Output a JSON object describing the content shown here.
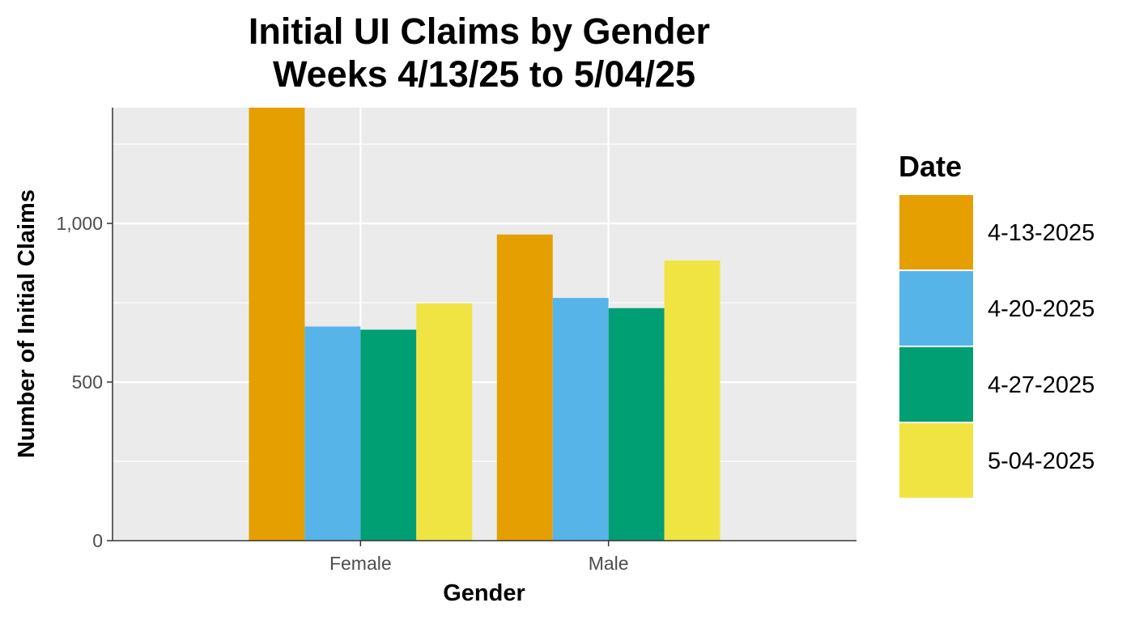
{
  "chart_data": {
    "type": "bar",
    "title_lines": [
      "Initial UI Claims by Gender",
      "Weeks 4/13/25 to 5/04/25"
    ],
    "xlabel": "Gender",
    "ylabel": "Number of Initial Claims",
    "categories": [
      "Female",
      "Male"
    ],
    "series": [
      {
        "name": "4-13-2025",
        "color": "#E69F00",
        "values": [
          1365,
          965
        ]
      },
      {
        "name": "4-20-2025",
        "color": "#56B4E9",
        "values": [
          675,
          765
        ]
      },
      {
        "name": "4-27-2025",
        "color": "#009E73",
        "values": [
          665,
          733
        ]
      },
      {
        "name": "5-04-2025",
        "color": "#F0E442",
        "values": [
          748,
          883
        ]
      }
    ],
    "ylim": [
      0,
      1365
    ],
    "yticks": [
      0,
      500,
      1000
    ],
    "ytick_labels": [
      "0",
      "500",
      "1,000"
    ],
    "legend": {
      "title": "Date",
      "position": "right"
    },
    "grid": true,
    "panel_background": "#EBEBEB",
    "grid_color": "#FFFFFF"
  }
}
